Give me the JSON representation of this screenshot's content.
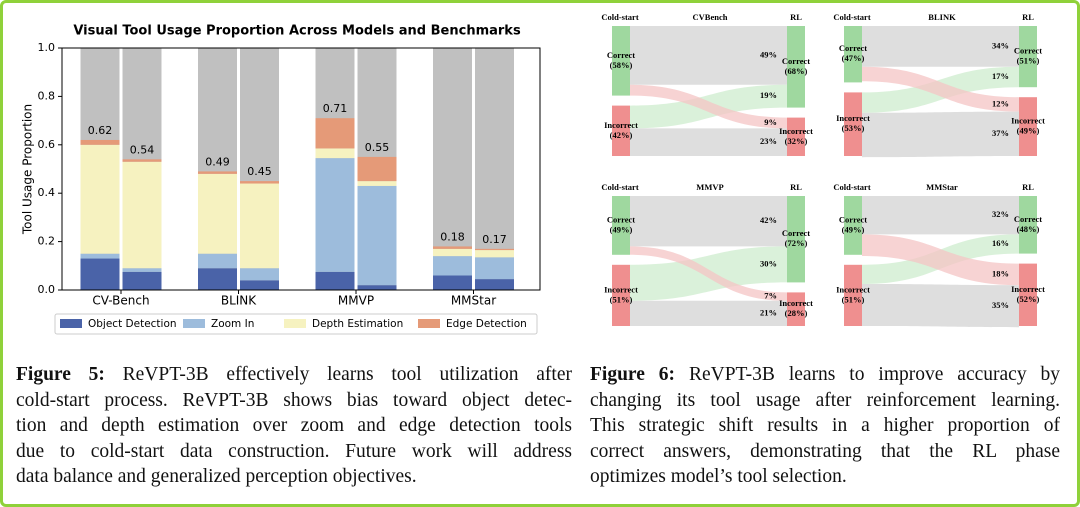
{
  "chart_data": {
    "type": "stacked-bar",
    "title": "Visual Tool Usage Proportion Across Models and Benchmarks",
    "y_label": "Tool Usage Proportion",
    "categories": [
      "CV-Bench",
      "BLINK",
      "MMVP",
      "MMStar"
    ],
    "series": [
      {
        "name": "Object Detection",
        "color": "#4a63a8",
        "values": [
          [
            0.13,
            0.075
          ],
          [
            0.09,
            0.04
          ],
          [
            0.075,
            0.02
          ],
          [
            0.06,
            0.045
          ]
        ]
      },
      {
        "name": "Zoom In",
        "color": "#9dbcdc",
        "values": [
          [
            0.02,
            0.015
          ],
          [
            0.06,
            0.05
          ],
          [
            0.47,
            0.41
          ],
          [
            0.08,
            0.09
          ]
        ]
      },
      {
        "name": "Depth Estimation",
        "color": "#f6f2c0",
        "values": [
          [
            0.45,
            0.44
          ],
          [
            0.33,
            0.35
          ],
          [
            0.04,
            0.02
          ],
          [
            0.03,
            0.03
          ]
        ]
      },
      {
        "name": "Edge Detection",
        "color": "#e59a78",
        "values": [
          [
            0.02,
            0.01
          ],
          [
            0.01,
            0.01
          ],
          [
            0.125,
            0.1
          ],
          [
            0.01,
            0.005
          ]
        ]
      }
    ],
    "totals": [
      [
        0.62,
        0.54
      ],
      [
        0.49,
        0.45
      ],
      [
        0.71,
        0.55
      ],
      [
        0.18,
        0.17
      ]
    ],
    "remainder_color": "#c0c0c0",
    "ylim": [
      0,
      1
    ],
    "yticks": [
      {
        "value": 0,
        "label": "0.0"
      },
      0.2,
      0.4,
      0.6,
      0.8,
      {
        "value": 1,
        "label": "1.0"
      }
    ],
    "legend": "bottom"
  },
  "sankeys": [
    {
      "title": "CVBench",
      "left_title": "Cold-start",
      "right_title": "RL",
      "left": [
        {
          "name": "Correct",
          "value": 58,
          "label": "(58%)"
        },
        {
          "name": "Incorrect",
          "value": 42,
          "label": "(42%)"
        }
      ],
      "right": [
        {
          "name": "Correct",
          "value": 68,
          "label": "(68%)"
        },
        {
          "name": "Incorrect",
          "value": 32,
          "label": "(32%)"
        }
      ],
      "flows": [
        {
          "value": 49,
          "label": "49%"
        },
        {
          "value": 19,
          "label": "19%"
        },
        {
          "value": 9,
          "label": "9%"
        },
        {
          "value": 23,
          "label": "23%"
        }
      ]
    },
    {
      "title": "BLINK",
      "left_title": "Cold-start",
      "right_title": "RL",
      "left": [
        {
          "name": "Correct",
          "value": 47,
          "label": "(47%)"
        },
        {
          "name": "Incorrect",
          "value": 53,
          "label": "(53%)"
        }
      ],
      "right": [
        {
          "name": "Correct",
          "value": 51,
          "label": "(51%)"
        },
        {
          "name": "Incorrect",
          "value": 49,
          "label": "(49%)"
        }
      ],
      "flows": [
        {
          "value": 34,
          "label": "34%"
        },
        {
          "value": 17,
          "label": "17%"
        },
        {
          "value": 12,
          "label": "12%"
        },
        {
          "value": 37,
          "label": "37%"
        }
      ]
    },
    {
      "title": "MMVP",
      "left_title": "Cold-start",
      "right_title": "RL",
      "left": [
        {
          "name": "Correct",
          "value": 49,
          "label": "(49%)"
        },
        {
          "name": "Incorrect",
          "value": 51,
          "label": "(51%)"
        }
      ],
      "right": [
        {
          "name": "Correct",
          "value": 72,
          "label": "(72%)"
        },
        {
          "name": "Incorrect",
          "value": 28,
          "label": "(28%)"
        }
      ],
      "flows": [
        {
          "value": 42,
          "label": "42%"
        },
        {
          "value": 30,
          "label": "30%"
        },
        {
          "value": 7,
          "label": "7%"
        },
        {
          "value": 21,
          "label": "21%"
        }
      ]
    },
    {
      "title": "MMStar",
      "left_title": "Cold-start",
      "right_title": "RL",
      "left": [
        {
          "name": "Correct",
          "value": 49,
          "label": "(49%)"
        },
        {
          "name": "Incorrect",
          "value": 51,
          "label": "(51%)"
        }
      ],
      "right": [
        {
          "name": "Correct",
          "value": 48,
          "label": "(48%)"
        },
        {
          "name": "Incorrect",
          "value": 52,
          "label": "(52%)"
        }
      ],
      "flows": [
        {
          "value": 32,
          "label": "32%"
        },
        {
          "value": 16,
          "label": "16%"
        },
        {
          "value": 18,
          "label": "18%"
        },
        {
          "value": 35,
          "label": "35%"
        }
      ]
    }
  ],
  "captions": [
    {
      "label": "Figure 5:",
      "lines": [
        " ReVPT-3B effectively learns tool utilization after",
        "cold-start process. ReVPT-3B shows bias toward object detec-",
        "tion and depth estimation over zoom and edge detection tools",
        "due to cold-start data construction. Future work will address",
        "data balance and generalized perception objectives."
      ]
    },
    {
      "label": "Figure 6:",
      "lines": [
        " ReVPT-3B learns to improve accuracy by",
        "changing its tool usage after reinforcement learning.",
        "This strategic shift results in a higher proportion of",
        "correct answers, demonstrating that the RL phase",
        "optimizes model’s tool selection."
      ]
    }
  ]
}
